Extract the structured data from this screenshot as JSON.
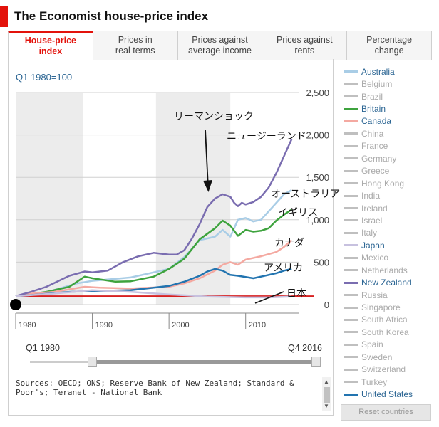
{
  "header": {
    "title": "The Economist house-price index"
  },
  "tabs": [
    {
      "label": "House-price\nindex",
      "active": true
    },
    {
      "label": "Prices in\nreal terms",
      "active": false
    },
    {
      "label": "Prices against\naverage income",
      "active": false
    },
    {
      "label": "Prices against\nrents",
      "active": false
    },
    {
      "label": "Percentage\nchange",
      "active": false
    }
  ],
  "subtitle": "Q1 1980=100",
  "chart_data": {
    "type": "line",
    "x_axis": {
      "ticks": [
        "1980",
        "1990",
        "2000",
        "2010"
      ],
      "range": [
        1980,
        2017
      ]
    },
    "y_axis": {
      "ticks": [
        0,
        500,
        1000,
        1500,
        2000,
        2500
      ],
      "tick_labels": [
        "0",
        "500",
        "1,000",
        "1,500",
        "2,000",
        "2,500"
      ],
      "range": [
        0,
        2500
      ]
    },
    "recession_bands": [
      [
        1980,
        1988.8
      ],
      [
        1998.3,
        2008
      ]
    ],
    "annotation": {
      "text": "リーマンショック",
      "year": 2005.7
    },
    "series": [
      {
        "name": "Australia",
        "label": "オーストラリア",
        "color": "#a9cde6",
        "width": 2.5,
        "points": [
          [
            1980,
            100
          ],
          [
            1984,
            145
          ],
          [
            1988,
            250
          ],
          [
            1990,
            280
          ],
          [
            1995,
            320
          ],
          [
            2000,
            420
          ],
          [
            2002,
            560
          ],
          [
            2004,
            760
          ],
          [
            2006,
            800
          ],
          [
            2007,
            880
          ],
          [
            2008,
            800
          ],
          [
            2009,
            1000
          ],
          [
            2010,
            1020
          ],
          [
            2011,
            980
          ],
          [
            2012,
            1000
          ],
          [
            2013,
            1100
          ],
          [
            2014,
            1200
          ],
          [
            2015,
            1300
          ],
          [
            2016,
            1350
          ]
        ]
      },
      {
        "name": "Britain",
        "label": "イギリス",
        "color": "#3ea33e",
        "width": 2.5,
        "points": [
          [
            1980,
            100
          ],
          [
            1984,
            150
          ],
          [
            1987,
            210
          ],
          [
            1989,
            330
          ],
          [
            1990,
            310
          ],
          [
            1993,
            270
          ],
          [
            1995,
            275
          ],
          [
            1998,
            330
          ],
          [
            2000,
            420
          ],
          [
            2002,
            540
          ],
          [
            2004,
            770
          ],
          [
            2006,
            900
          ],
          [
            2007,
            990
          ],
          [
            2008,
            930
          ],
          [
            2009,
            810
          ],
          [
            2010,
            880
          ],
          [
            2011,
            860
          ],
          [
            2012,
            870
          ],
          [
            2013,
            900
          ],
          [
            2014,
            990
          ],
          [
            2015,
            1060
          ],
          [
            2016,
            1120
          ]
        ]
      },
      {
        "name": "Canada",
        "label": "カナダ",
        "color": "#f4a9a1",
        "width": 2.5,
        "points": [
          [
            1980,
            100
          ],
          [
            1982,
            130
          ],
          [
            1985,
            150
          ],
          [
            1989,
            210
          ],
          [
            1991,
            200
          ],
          [
            1995,
            190
          ],
          [
            2000,
            210
          ],
          [
            2002,
            250
          ],
          [
            2004,
            310
          ],
          [
            2006,
            400
          ],
          [
            2007,
            470
          ],
          [
            2008,
            500
          ],
          [
            2009,
            470
          ],
          [
            2010,
            530
          ],
          [
            2012,
            570
          ],
          [
            2014,
            620
          ],
          [
            2015,
            680
          ],
          [
            2016,
            760
          ]
        ]
      },
      {
        "name": "New Zealand",
        "label": "ニュージーランド",
        "color": "#7a6db0",
        "width": 2.5,
        "points": [
          [
            1980,
            100
          ],
          [
            1982,
            150
          ],
          [
            1984,
            210
          ],
          [
            1987,
            340
          ],
          [
            1989,
            390
          ],
          [
            1990,
            380
          ],
          [
            1992,
            400
          ],
          [
            1994,
            500
          ],
          [
            1996,
            570
          ],
          [
            1998,
            610
          ],
          [
            2000,
            590
          ],
          [
            2001,
            590
          ],
          [
            2002,
            640
          ],
          [
            2003,
            780
          ],
          [
            2004,
            950
          ],
          [
            2005,
            1150
          ],
          [
            2006,
            1250
          ],
          [
            2007,
            1300
          ],
          [
            2008,
            1270
          ],
          [
            2008.5,
            1200
          ],
          [
            2009,
            1160
          ],
          [
            2009.5,
            1200
          ],
          [
            2010,
            1180
          ],
          [
            2011,
            1210
          ],
          [
            2012,
            1270
          ],
          [
            2013,
            1380
          ],
          [
            2014,
            1550
          ],
          [
            2015,
            1750
          ],
          [
            2016,
            1950
          ]
        ]
      },
      {
        "name": "United States",
        "label": "アメリカ",
        "color": "#2274b0",
        "width": 2.5,
        "points": [
          [
            1980,
            100
          ],
          [
            1983,
            120
          ],
          [
            1987,
            150
          ],
          [
            1990,
            160
          ],
          [
            1995,
            170
          ],
          [
            1998,
            200
          ],
          [
            2000,
            220
          ],
          [
            2002,
            270
          ],
          [
            2004,
            340
          ],
          [
            2005,
            390
          ],
          [
            2006,
            420
          ],
          [
            2007,
            400
          ],
          [
            2008,
            350
          ],
          [
            2009,
            340
          ],
          [
            2011,
            310
          ],
          [
            2012,
            330
          ],
          [
            2014,
            370
          ],
          [
            2015,
            400
          ],
          [
            2016,
            420
          ]
        ]
      },
      {
        "name": "Japan",
        "label": "日本",
        "color": "#c7c1df",
        "width": 2.5,
        "points": [
          [
            1980,
            100
          ],
          [
            1985,
            130
          ],
          [
            1990,
            170
          ],
          [
            1995,
            150
          ],
          [
            2000,
            120
          ],
          [
            2005,
            95
          ],
          [
            2010,
            85
          ],
          [
            2013,
            85
          ],
          [
            2016,
            95
          ]
        ]
      }
    ],
    "baseline": {
      "value": 100,
      "color": "#d82020"
    }
  },
  "slider": {
    "start": "Q1 1980",
    "end": "Q4 2016"
  },
  "sources": "Sources: OECD; ONS; Reserve Bank of New Zealand; Standard & Poor's; Teranet - National Bank",
  "legend": [
    {
      "name": "Australia",
      "color": "#a9cde6",
      "active": true
    },
    {
      "name": "Belgium",
      "color": "#cccccc",
      "active": false
    },
    {
      "name": "Brazil",
      "color": "#cccccc",
      "active": false
    },
    {
      "name": "Britain",
      "color": "#3ea33e",
      "active": true
    },
    {
      "name": "Canada",
      "color": "#f4a9a1",
      "active": true
    },
    {
      "name": "China",
      "color": "#cccccc",
      "active": false
    },
    {
      "name": "France",
      "color": "#cccccc",
      "active": false
    },
    {
      "name": "Germany",
      "color": "#cccccc",
      "active": false
    },
    {
      "name": "Greece",
      "color": "#cccccc",
      "active": false
    },
    {
      "name": "Hong Kong",
      "color": "#cccccc",
      "active": false
    },
    {
      "name": "India",
      "color": "#cccccc",
      "active": false
    },
    {
      "name": "Ireland",
      "color": "#cccccc",
      "active": false
    },
    {
      "name": "Israel",
      "color": "#cccccc",
      "active": false
    },
    {
      "name": "Italy",
      "color": "#cccccc",
      "active": false
    },
    {
      "name": "Japan",
      "color": "#c7c1df",
      "active": true
    },
    {
      "name": "Mexico",
      "color": "#cccccc",
      "active": false
    },
    {
      "name": "Netherlands",
      "color": "#cccccc",
      "active": false
    },
    {
      "name": "New Zealand",
      "color": "#7a6db0",
      "active": true
    },
    {
      "name": "Russia",
      "color": "#cccccc",
      "active": false
    },
    {
      "name": "Singapore",
      "color": "#cccccc",
      "active": false
    },
    {
      "name": "South Africa",
      "color": "#cccccc",
      "active": false
    },
    {
      "name": "South Korea",
      "color": "#cccccc",
      "active": false
    },
    {
      "name": "Spain",
      "color": "#cccccc",
      "active": false
    },
    {
      "name": "Sweden",
      "color": "#cccccc",
      "active": false
    },
    {
      "name": "Switzerland",
      "color": "#cccccc",
      "active": false
    },
    {
      "name": "Turkey",
      "color": "#cccccc",
      "active": false
    },
    {
      "name": "United States",
      "color": "#2274b0",
      "active": true
    }
  ],
  "reset_label": "Reset countries"
}
